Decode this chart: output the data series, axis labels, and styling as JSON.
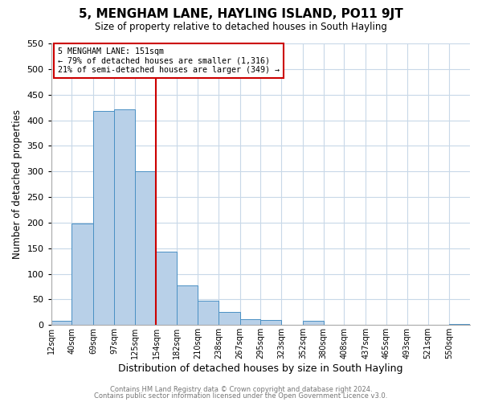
{
  "title": "5, MENGHAM LANE, HAYLING ISLAND, PO11 9JT",
  "subtitle": "Size of property relative to detached houses in South Hayling",
  "xlabel": "Distribution of detached houses by size in South Hayling",
  "ylabel": "Number of detached properties",
  "bar_edges": [
    12,
    40,
    69,
    97,
    125,
    154,
    182,
    210,
    238,
    267,
    295,
    323,
    352,
    380,
    408,
    437,
    465,
    493,
    521,
    550,
    578
  ],
  "bar_heights": [
    8,
    199,
    418,
    422,
    300,
    143,
    78,
    48,
    25,
    12,
    10,
    0,
    8,
    1,
    0,
    0,
    0,
    0,
    0,
    2
  ],
  "bar_color": "#b8d0e8",
  "bar_edge_color": "#4a90c4",
  "property_line_x": 154,
  "property_line_color": "#cc0000",
  "ylim": [
    0,
    550
  ],
  "yticks": [
    0,
    50,
    100,
    150,
    200,
    250,
    300,
    350,
    400,
    450,
    500,
    550
  ],
  "annotation_title": "5 MENGHAM LANE: 151sqm",
  "annotation_line1": "← 79% of detached houses are smaller (1,316)",
  "annotation_line2": "21% of semi-detached houses are larger (349) →",
  "annotation_box_color": "#cc0000",
  "footer_line1": "Contains HM Land Registry data © Crown copyright and database right 2024.",
  "footer_line2": "Contains public sector information licensed under the Open Government Licence v3.0.",
  "bg_color": "#ffffff",
  "grid_color": "#c8d8e8"
}
